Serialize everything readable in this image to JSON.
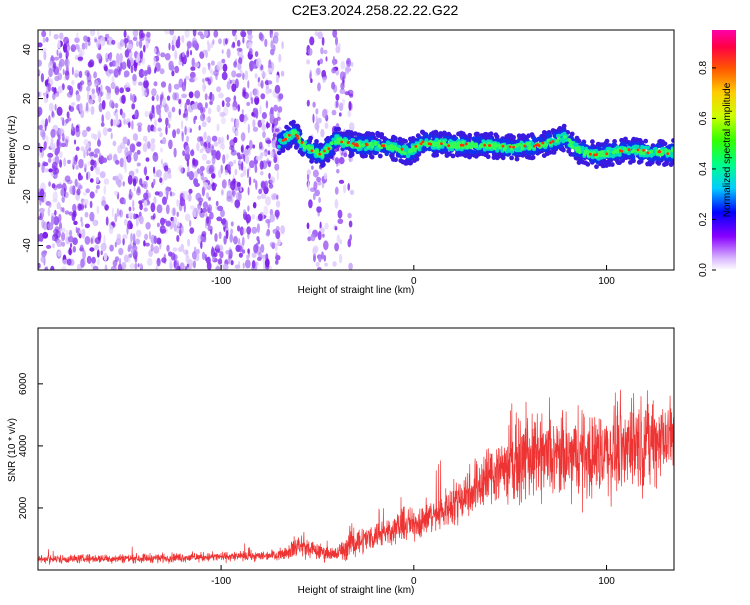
{
  "title": "C2E3.2024.258.22.22.G22",
  "chart_data": [
    {
      "type": "heatmap",
      "xlabel": "Height of straight line (km)",
      "ylabel": "Frequency (Hz)",
      "xlim": [
        -195,
        135
      ],
      "ylim": [
        -50,
        48
      ],
      "x_ticks": [
        -100,
        0,
        100
      ],
      "x_tick_labels": [
        "-100",
        "0",
        "100"
      ],
      "y_ticks": [
        -40,
        -20,
        0,
        20,
        40
      ],
      "y_tick_labels": [
        "-40",
        "-20",
        "0",
        "20",
        "40"
      ],
      "grid": false,
      "colorbar": {
        "label": "Normalized spectral amplitude",
        "range": [
          0,
          0.95
        ],
        "ticks": [
          0.0,
          0.2,
          0.4,
          0.6,
          0.8
        ],
        "tick_labels": [
          "0.0",
          "0.2",
          "0.4",
          "0.6",
          "0.8"
        ]
      },
      "noise_region_x": [
        -195,
        -68
      ],
      "noise_strips_x": [
        [
          -55,
          -45
        ],
        [
          -42,
          -32
        ]
      ],
      "ridge": [
        {
          "x": -70,
          "y": 2
        },
        {
          "x": -62,
          "y": 6
        },
        {
          "x": -56,
          "y": 0
        },
        {
          "x": -48,
          "y": -3
        },
        {
          "x": -40,
          "y": 3
        },
        {
          "x": -30,
          "y": 1
        },
        {
          "x": -20,
          "y": 1
        },
        {
          "x": -10,
          "y": 0
        },
        {
          "x": -3,
          "y": -2
        },
        {
          "x": 5,
          "y": 2
        },
        {
          "x": 20,
          "y": 1
        },
        {
          "x": 35,
          "y": 1
        },
        {
          "x": 50,
          "y": 0
        },
        {
          "x": 65,
          "y": 1
        },
        {
          "x": 78,
          "y": 4
        },
        {
          "x": 85,
          "y": -1
        },
        {
          "x": 95,
          "y": -3
        },
        {
          "x": 110,
          "y": -1
        },
        {
          "x": 125,
          "y": -2
        },
        {
          "x": 135,
          "y": -2
        }
      ]
    },
    {
      "type": "line",
      "xlabel": "Height of straight line (km)",
      "ylabel": "SNR (10 * v/v)",
      "xlim": [
        -195,
        135
      ],
      "ylim": [
        0,
        7800
      ],
      "x_ticks": [
        -100,
        0,
        100
      ],
      "x_tick_labels": [
        "-100",
        "0",
        "100"
      ],
      "y_ticks": [
        2000,
        4000,
        6000
      ],
      "y_tick_labels": [
        "2000",
        "4000",
        "6000"
      ],
      "grid": false,
      "series": [
        {
          "color": "#ee3333",
          "envelope": [
            {
              "x": -195,
              "mean": 350,
              "spread": 200
            },
            {
              "x": -140,
              "mean": 380,
              "spread": 220
            },
            {
              "x": -80,
              "mean": 450,
              "spread": 230
            },
            {
              "x": -68,
              "mean": 520,
              "spread": 260
            },
            {
              "x": -60,
              "mean": 800,
              "spread": 600
            },
            {
              "x": -50,
              "mean": 600,
              "spread": 400
            },
            {
              "x": -40,
              "mean": 500,
              "spread": 350
            },
            {
              "x": -32,
              "mean": 900,
              "spread": 800
            },
            {
              "x": -25,
              "mean": 1000,
              "spread": 600
            },
            {
              "x": -10,
              "mean": 1350,
              "spread": 700
            },
            {
              "x": 0,
              "mean": 1500,
              "spread": 800
            },
            {
              "x": 15,
              "mean": 1900,
              "spread": 900
            },
            {
              "x": 30,
              "mean": 2600,
              "spread": 1300
            },
            {
              "x": 45,
              "mean": 3300,
              "spread": 1700
            },
            {
              "x": 60,
              "mean": 3600,
              "spread": 1900
            },
            {
              "x": 80,
              "mean": 3600,
              "spread": 2000
            },
            {
              "x": 100,
              "mean": 3800,
              "spread": 2100
            },
            {
              "x": 115,
              "mean": 4100,
              "spread": 2200
            },
            {
              "x": 135,
              "mean": 4300,
              "spread": 2000
            }
          ]
        }
      ]
    }
  ],
  "colors": {
    "snr_line": "#ee3333",
    "noise": "#8a2be2"
  }
}
